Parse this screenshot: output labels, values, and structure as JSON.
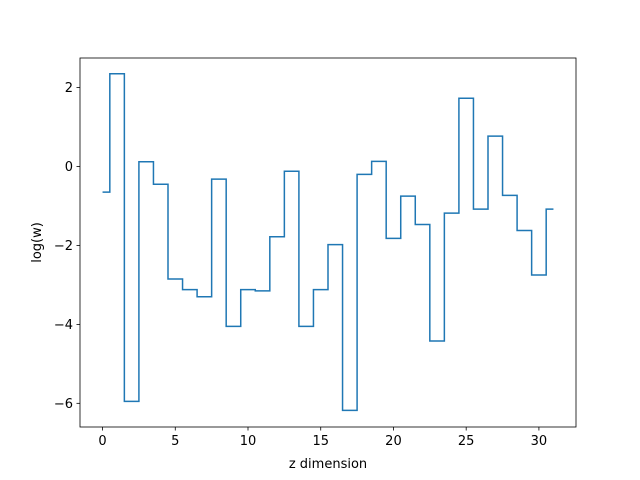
{
  "chart_data": {
    "type": "line",
    "drawstyle": "steps-mid",
    "xlabel": "z dimension",
    "ylabel": "log(w)",
    "xlim": [
      -1.55,
      32.55
    ],
    "ylim": [
      -6.6,
      2.75
    ],
    "xticks": [
      0,
      5,
      10,
      15,
      20,
      25,
      30
    ],
    "yticks": [
      -6,
      -4,
      -2,
      0,
      2
    ],
    "grid": false,
    "legend": "none",
    "series": [
      {
        "color": "#1f77b4",
        "x": [
          0,
          1,
          2,
          3,
          4,
          5,
          6,
          7,
          8,
          9,
          10,
          11,
          12,
          13,
          14,
          15,
          16,
          17,
          18,
          19,
          20,
          21,
          22,
          23,
          24,
          25,
          26,
          27,
          28,
          29,
          30,
          31
        ],
        "values": [
          -0.65,
          2.35,
          -5.95,
          0.12,
          -0.45,
          -2.85,
          -3.12,
          -3.3,
          -0.32,
          -4.05,
          -3.12,
          -3.15,
          -1.78,
          -0.12,
          -4.05,
          -3.12,
          -1.98,
          -6.18,
          -0.2,
          0.13,
          -1.82,
          -0.75,
          -1.47,
          -4.42,
          -1.18,
          1.73,
          -1.08,
          0.77,
          -0.73,
          -1.62,
          -2.75,
          -1.08
        ]
      }
    ]
  }
}
